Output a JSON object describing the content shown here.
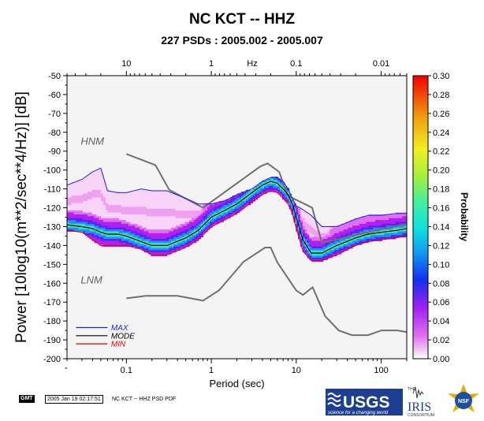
{
  "chart_data": {
    "type": "heatmap",
    "title": "NC KCT -- HHZ",
    "subtitle": "227 PSDs : 2005.002 - 2005.007",
    "xlabel": "Period (sec)",
    "ylabel": "Power [10log10(m**2/sec**4/Hz)] [dB]",
    "x_scale": "log",
    "xlim": [
      0.02,
      200
    ],
    "ylim": [
      -200,
      -50
    ],
    "period_ticks": [
      0.1,
      1,
      10,
      100
    ],
    "period_tick_labels": [
      "0.1",
      "1",
      "10",
      "100"
    ],
    "top_axis_label": "Hz",
    "freq_ticks": [
      10,
      1,
      0.1,
      0.01
    ],
    "freq_tick_labels": [
      "10",
      "1",
      "0.1",
      "0.01"
    ],
    "y_ticks": [
      -50,
      -60,
      -70,
      -80,
      -90,
      -100,
      -110,
      -120,
      -130,
      -140,
      -150,
      -160,
      -170,
      -180,
      -190,
      -200
    ],
    "colorbar": {
      "label": "Probability",
      "range": [
        0,
        0.3
      ],
      "ticks": [
        0.0,
        0.02,
        0.04,
        0.06,
        0.08,
        0.1,
        0.12,
        0.14,
        0.16,
        0.18,
        0.2,
        0.22,
        0.24,
        0.26,
        0.28,
        0.3
      ],
      "tick_labels": [
        "0.00",
        "0.02",
        "0.04",
        "0.06",
        "0.08",
        "0.10",
        "0.12",
        "0.14",
        "0.16",
        "0.18",
        "0.20",
        "0.22",
        "0.24",
        "0.26",
        "0.28",
        "0.30"
      ]
    },
    "model_labels": {
      "hnm": "HNM",
      "lnm": "LNM"
    },
    "legend": {
      "placement": "bottom-left",
      "entries": [
        {
          "name": "MAX",
          "color": "#2020e0"
        },
        {
          "name": "MODE",
          "color": "#000000"
        },
        {
          "name": "MIN",
          "color": "#e00000"
        }
      ]
    },
    "series": [
      {
        "name": "MODE",
        "x": [
          0.02,
          0.03,
          0.04,
          0.05,
          0.06,
          0.08,
          0.1,
          0.15,
          0.2,
          0.3,
          0.5,
          0.7,
          1,
          1.5,
          2,
          3,
          4,
          5,
          6,
          7,
          8,
          9,
          10,
          12,
          15,
          20,
          30,
          50,
          70,
          100,
          150,
          200
        ],
        "y": [
          -129,
          -130,
          -131,
          -133,
          -134,
          -134,
          -135,
          -138,
          -140,
          -140,
          -136,
          -132,
          -125,
          -121,
          -118,
          -112,
          -108,
          -106,
          -107,
          -110,
          -113,
          -118,
          -125,
          -137,
          -144,
          -144,
          -140,
          -136,
          -134,
          -133,
          -132,
          -131
        ]
      },
      {
        "name": "MAX",
        "x": [
          0.02,
          0.03,
          0.04,
          0.05,
          0.06,
          0.08,
          0.1,
          0.15,
          0.2,
          0.3,
          0.5,
          0.7,
          1,
          1.5,
          2,
          3,
          4,
          5,
          6,
          7,
          8,
          9,
          10,
          12,
          15,
          20,
          30,
          50,
          70,
          100,
          150,
          200
        ],
        "y": [
          -108,
          -105,
          -101,
          -99,
          -111,
          -112,
          -112,
          -110,
          -111,
          -111,
          -115,
          -118,
          -118,
          -116,
          -113,
          -110,
          -106,
          -104,
          -104,
          -106,
          -110,
          -115,
          -119,
          -121,
          -124,
          -130,
          -130,
          -126,
          -124,
          -124,
          -123,
          -123
        ]
      },
      {
        "name": "MIN",
        "x": [
          0.02,
          0.03,
          0.04,
          0.05,
          0.06,
          0.08,
          0.1,
          0.15,
          0.2,
          0.3,
          0.5,
          0.7,
          1,
          1.5,
          2,
          3,
          4,
          5,
          6,
          7,
          8,
          9,
          10,
          12,
          15,
          20,
          30,
          50,
          70,
          100,
          150,
          200
        ],
        "y": [
          -132,
          -133,
          -137,
          -140,
          -140,
          -140,
          -140,
          -142,
          -145,
          -145,
          -141,
          -137,
          -130,
          -126,
          -123,
          -117,
          -113,
          -111,
          -112,
          -115,
          -118,
          -123,
          -131,
          -143,
          -148,
          -148,
          -145,
          -140,
          -138,
          -137,
          -136,
          -135
        ]
      },
      {
        "name": "HNM",
        "x": [
          0.1,
          0.22,
          0.32,
          0.8,
          3.8,
          4.6,
          6.3,
          7.9,
          15.4,
          20,
          354
        ],
        "y": [
          -91.5,
          -97.4,
          -110.5,
          -120,
          -98,
          -96.5,
          -101,
          -113.5,
          -120,
          -138.5,
          -126
        ]
      },
      {
        "name": "LNM",
        "x": [
          0.1,
          0.17,
          0.4,
          0.8,
          1.24,
          2.4,
          4.3,
          5,
          6,
          10,
          12,
          15.6,
          21.9,
          31.6,
          45,
          70,
          101,
          154,
          328,
          600
        ],
        "y": [
          -168,
          -166.7,
          -166.7,
          -169.2,
          -163.7,
          -148.6,
          -141.1,
          -141.1,
          -149,
          -163.8,
          -166.2,
          -162.1,
          -177.5,
          -185,
          -187.5,
          -187.5,
          -185,
          -185,
          -187.5,
          -184.4
        ]
      }
    ]
  },
  "footer": {
    "gmt_label": "GMT",
    "timestamp": "2005 Jan 19 02:17:51",
    "caption": "NC KCT -- HHZ PSD PDF"
  },
  "logos": {
    "usgs_name": "USGS",
    "usgs_tagline": "science for a changing world",
    "iris_prefix": "THE",
    "iris_name": "IRIS",
    "iris_sub": "CONSORTIUM",
    "nsf_name": "NSF"
  }
}
